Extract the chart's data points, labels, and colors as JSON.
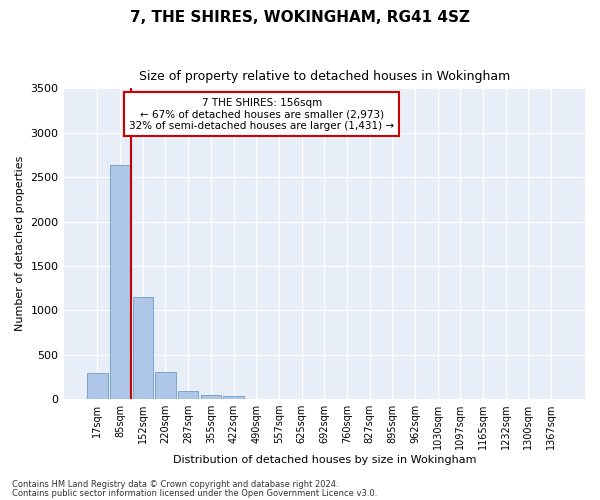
{
  "title": "7, THE SHIRES, WOKINGHAM, RG41 4SZ",
  "subtitle": "Size of property relative to detached houses in Wokingham",
  "xlabel": "Distribution of detached houses by size in Wokingham",
  "ylabel": "Number of detached properties",
  "footnote1": "Contains HM Land Registry data © Crown copyright and database right 2024.",
  "footnote2": "Contains public sector information licensed under the Open Government Licence v3.0.",
  "bar_labels": [
    "17sqm",
    "85sqm",
    "152sqm",
    "220sqm",
    "287sqm",
    "355sqm",
    "422sqm",
    "490sqm",
    "557sqm",
    "625sqm",
    "692sqm",
    "760sqm",
    "827sqm",
    "895sqm",
    "962sqm",
    "1030sqm",
    "1097sqm",
    "1165sqm",
    "1232sqm",
    "1300sqm",
    "1367sqm"
  ],
  "bar_values": [
    290,
    2640,
    1150,
    300,
    95,
    45,
    30,
    0,
    0,
    0,
    0,
    0,
    0,
    0,
    0,
    0,
    0,
    0,
    0,
    0,
    0
  ],
  "bar_color": "#aec6e8",
  "bar_edge_color": "#5a8fc0",
  "ylim": [
    0,
    3500
  ],
  "yticks": [
    0,
    500,
    1000,
    1500,
    2000,
    2500,
    3000,
    3500
  ],
  "vline_x": 1.5,
  "annotation_text_line1": "7 THE SHIRES: 156sqm",
  "annotation_text_line2": "← 67% of detached houses are smaller (2,973)",
  "annotation_text_line3": "32% of semi-detached houses are larger (1,431) →",
  "annotation_box_color": "#ffffff",
  "annotation_box_edge": "#cc0000",
  "vline_color": "#cc0000",
  "background_color": "#e8eef8",
  "grid_color": "#ffffff",
  "title_fontsize": 11,
  "subtitle_fontsize": 9,
  "axis_label_fontsize": 8,
  "tick_fontsize": 7,
  "annotation_fontsize": 7.5,
  "footnote_fontsize": 6
}
